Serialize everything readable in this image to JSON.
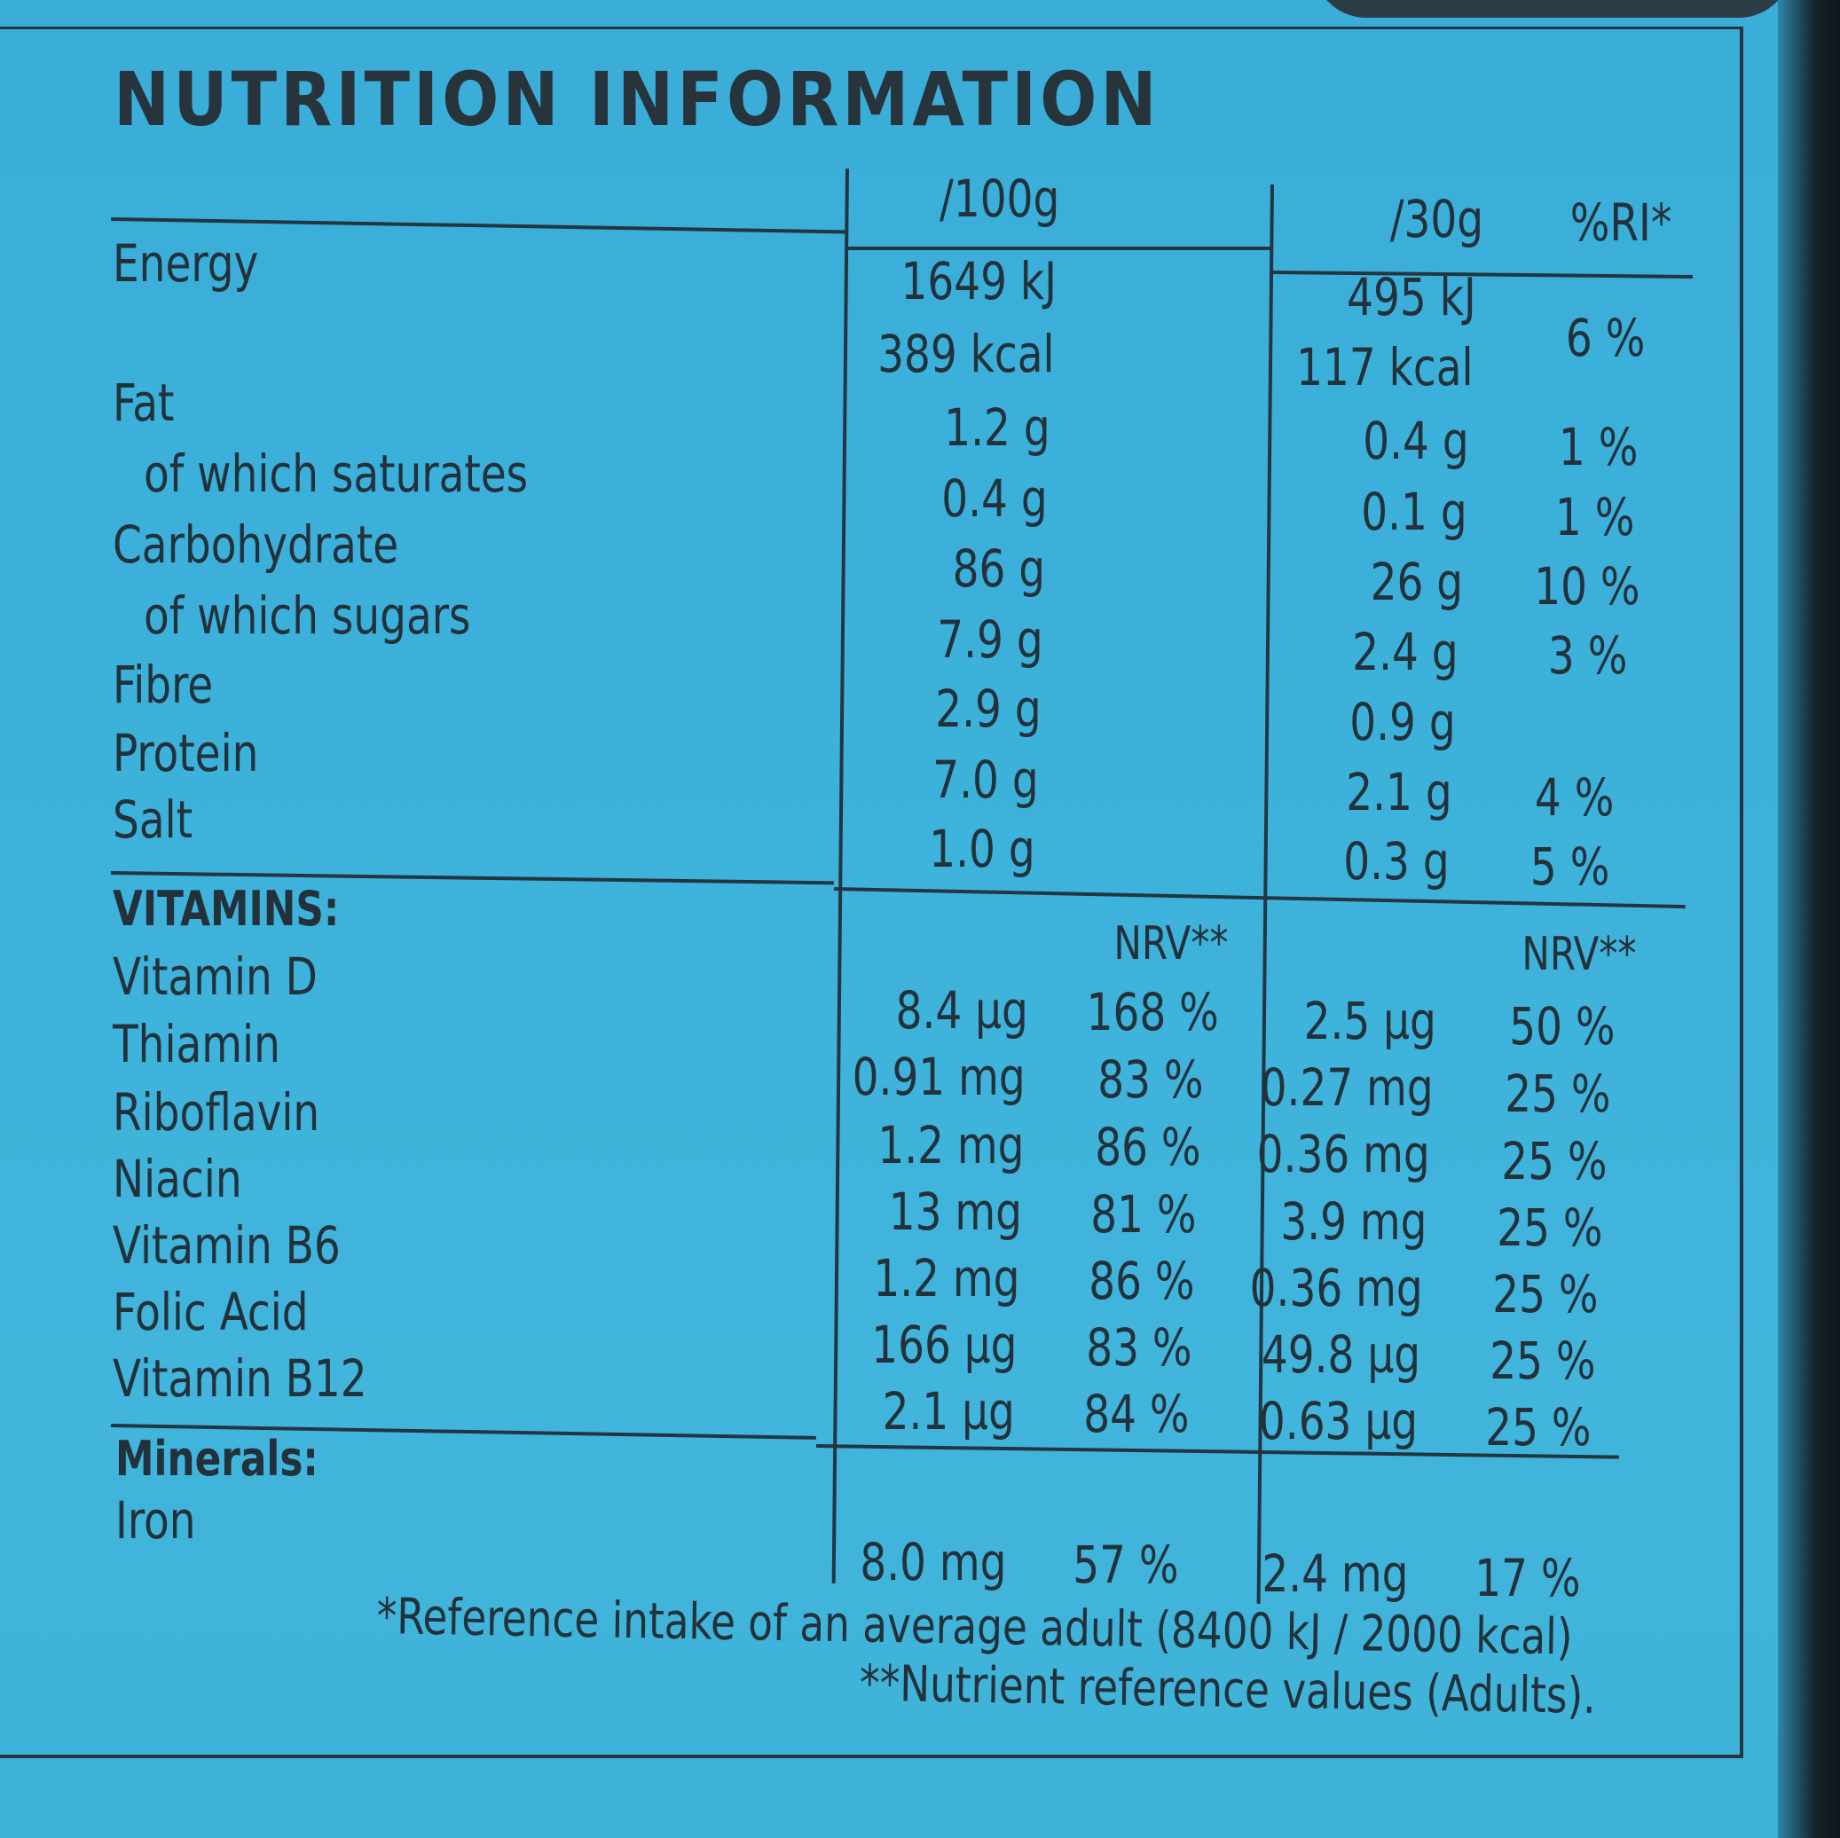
{
  "label": {
    "title": "NUTRITION INFORMATION",
    "headers": {
      "per100": "/100g",
      "per30": "/30g",
      "ri": "%RI*"
    },
    "energy": {
      "name": "Energy",
      "per100": [
        "1649 kJ",
        "389 kcal"
      ],
      "per30": [
        "495 kJ",
        "117 kcal"
      ],
      "ri": "6 %"
    },
    "nutrients": [
      {
        "name": "Fat",
        "per100": "1.2 g",
        "per30": "0.4 g",
        "ri": "1 %"
      },
      {
        "name": "of which saturates",
        "per100": "0.4 g",
        "per30": "0.1 g",
        "ri": "1 %"
      },
      {
        "name": "Carbohydrate",
        "per100": "86 g",
        "per30": "26 g",
        "ri": "10 %"
      },
      {
        "name": "of which sugars",
        "per100": "7.9 g",
        "per30": "2.4 g",
        "ri": "3 %"
      },
      {
        "name": "Fibre",
        "per100": "2.9 g",
        "per30": "0.9 g",
        "ri": ""
      },
      {
        "name": "Protein",
        "per100": "7.0 g",
        "per30": "2.1 g",
        "ri": "4 %"
      },
      {
        "name": "Salt",
        "per100": "1.0 g",
        "per30": "0.3 g",
        "ri": "5 %"
      }
    ],
    "vitamins_heading": "VITAMINS:",
    "nrv_header": "NRV**",
    "vitamins": [
      {
        "name": "Vitamin D",
        "per100": "8.4 µg",
        "nrv100": "168 %",
        "per30": "2.5 µg",
        "nrv30": "50 %"
      },
      {
        "name": "Thiamin",
        "per100": "0.91 mg",
        "nrv100": "83 %",
        "per30": "0.27 mg",
        "nrv30": "25 %"
      },
      {
        "name": "Riboflavin",
        "per100": "1.2 mg",
        "nrv100": "86 %",
        "per30": "0.36 mg",
        "nrv30": "25 %"
      },
      {
        "name": "Niacin",
        "per100": "13 mg",
        "nrv100": "81 %",
        "per30": "3.9 mg",
        "nrv30": "25 %"
      },
      {
        "name": "Vitamin B6",
        "per100": "1.2 mg",
        "nrv100": "86 %",
        "per30": "0.36 mg",
        "nrv30": "25 %"
      },
      {
        "name": "Folic Acid",
        "per100": "166 µg",
        "nrv100": "83 %",
        "per30": "49.8 µg",
        "nrv30": "25 %"
      },
      {
        "name": "Vitamin B12",
        "per100": "2.1 µg",
        "nrv100": "84 %",
        "per30": "0.63 µg",
        "nrv30": "25 %"
      }
    ],
    "minerals_heading": "Minerals:",
    "minerals": [
      {
        "name": "Iron",
        "per100": "8.0 mg",
        "nrv100": "57 %",
        "per30": "2.4 mg",
        "nrv30": "17 %"
      }
    ],
    "footnote1": "*Reference intake of an average adult (8400 kJ / 2000 kcal)",
    "footnote2": "**Nutrient reference values (Adults)."
  }
}
